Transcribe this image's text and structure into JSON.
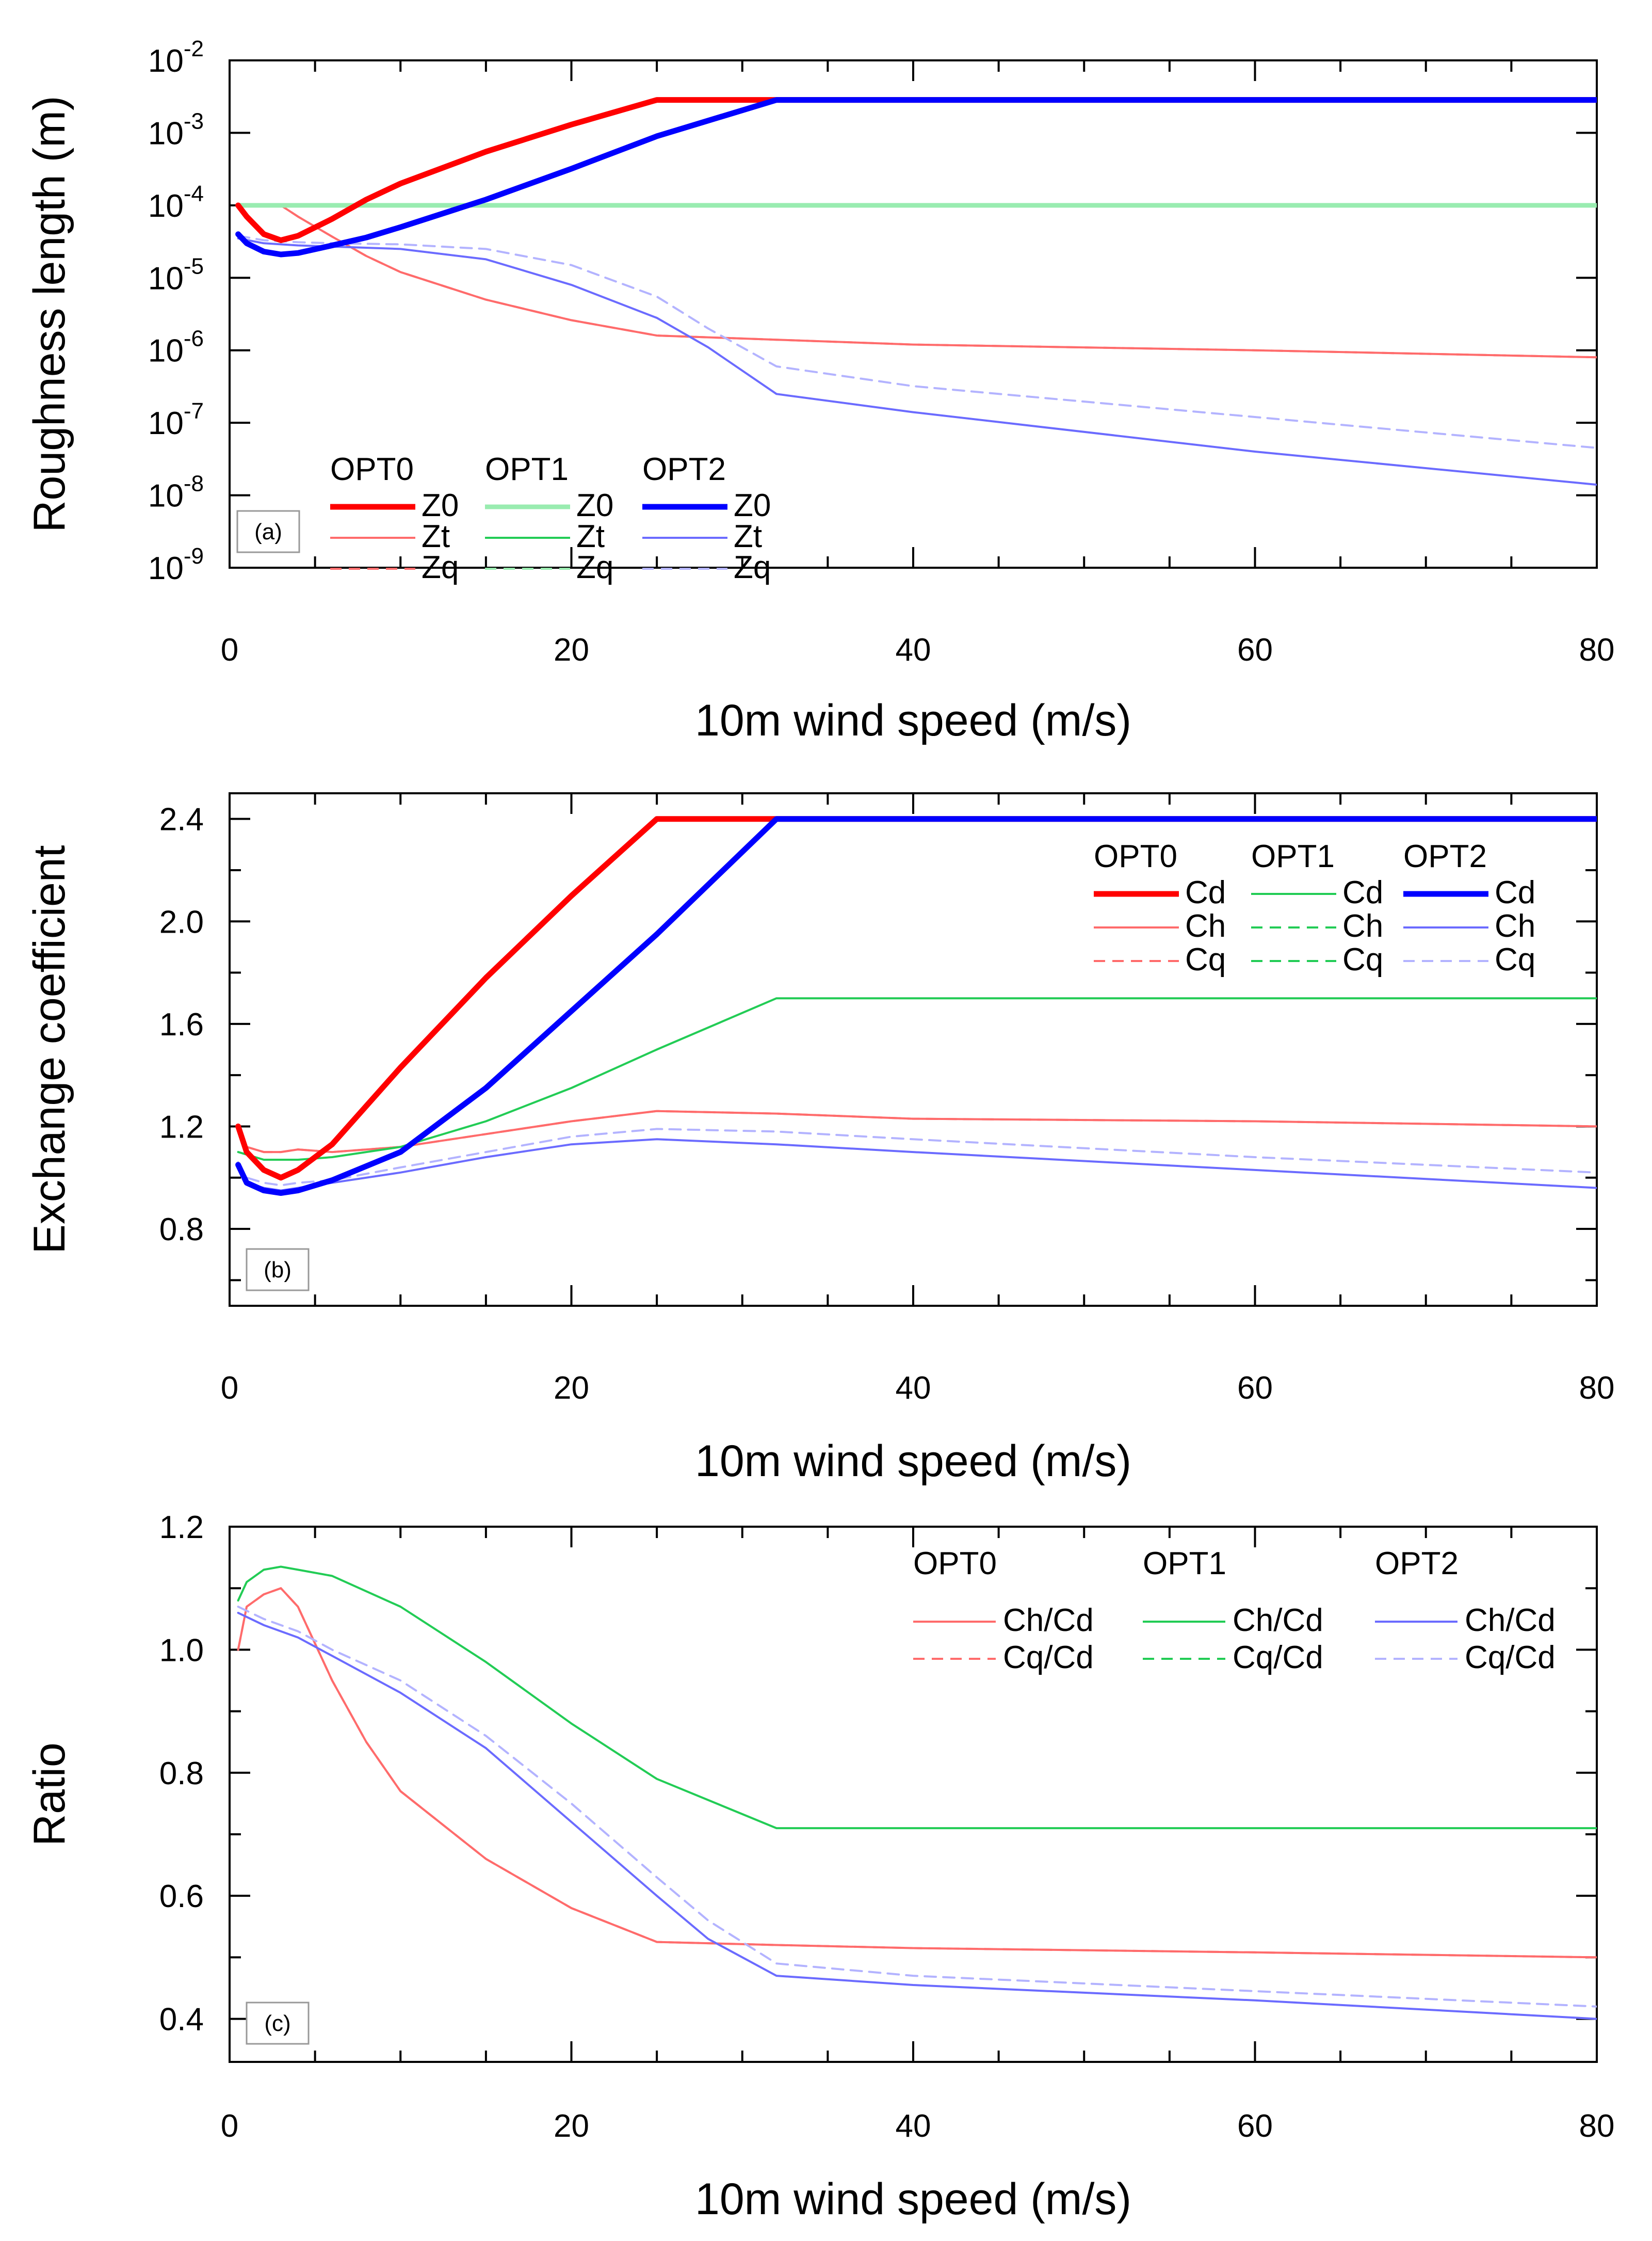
{
  "colors": {
    "opt0": "#ff0000",
    "opt0_light": "#ff6b6b",
    "opt1": "#22cc55",
    "opt1_light": "#99ecb0",
    "opt2": "#0000ff",
    "opt2_light": "#6b6bff",
    "opt2_lighter": "#b3b3ff"
  },
  "chart_data": [
    {
      "id": "a",
      "type": "line",
      "panel_label": "(a)",
      "xlabel": "10m wind speed (m/s)",
      "ylabel": "Roughness length (m)",
      "xlim": [
        0,
        80
      ],
      "yscale": "log",
      "ylim_exp": [
        -9,
        -2
      ],
      "xticks": [
        0,
        20,
        40,
        60,
        80
      ],
      "yticks": [
        -9,
        -8,
        -7,
        -6,
        -5,
        -4,
        -3,
        -2
      ],
      "ytick_labels": [
        {
          "base": "10",
          "exp": "-9"
        },
        {
          "base": "10",
          "exp": "-8"
        },
        {
          "base": "10",
          "exp": "-7"
        },
        {
          "base": "10",
          "exp": "-6"
        },
        {
          "base": "10",
          "exp": "-5"
        },
        {
          "base": "10",
          "exp": "-4"
        },
        {
          "base": "10",
          "exp": "-3"
        },
        {
          "base": "10",
          "exp": "-2"
        }
      ],
      "grid": false,
      "legend": {
        "position": "bottom-left",
        "groups": [
          "OPT0",
          "OPT1",
          "OPT2"
        ],
        "items": [
          "Z0",
          "Zt",
          "Zq"
        ]
      },
      "series": [
        {
          "name": "OPT0 Z0",
          "color_key": "opt0",
          "width": 11,
          "dash": "",
          "x": [
            0.5,
            1,
            2,
            3,
            4,
            6,
            8,
            10,
            15,
            20,
            25,
            80
          ],
          "y": [
            0.0001,
            7e-05,
            4e-05,
            3.3e-05,
            3.8e-05,
            6.5e-05,
            0.00012,
            0.0002,
            0.00055,
            0.0013,
            0.00285,
            0.00285
          ]
        },
        {
          "name": "OPT0 Zt",
          "color_key": "opt0_light",
          "width": 4,
          "dash": "",
          "x": [
            0.5,
            1,
            2,
            3,
            4,
            6,
            8,
            10,
            15,
            20,
            25,
            32,
            40,
            60,
            80
          ],
          "y": [
            0.0001,
            0.0001,
            0.0001,
            0.0001,
            7e-05,
            3.7e-05,
            2e-05,
            1.2e-05,
            5e-06,
            2.6e-06,
            1.6e-06,
            1.4e-06,
            1.2e-06,
            1e-06,
            8e-07
          ]
        },
        {
          "name": "OPT0 Zq",
          "color_key": "opt0_light",
          "width": 4,
          "dash": "22,14",
          "x": [
            0.5,
            1,
            2,
            3,
            4,
            6,
            8,
            10,
            15,
            20,
            25,
            32,
            40,
            60,
            80
          ],
          "y": [
            0.0001,
            0.0001,
            0.0001,
            0.0001,
            7e-05,
            3.7e-05,
            2e-05,
            1.2e-05,
            5e-06,
            2.6e-06,
            1.6e-06,
            1.4e-06,
            1.2e-06,
            1e-06,
            8e-07
          ]
        },
        {
          "name": "OPT1 Z0",
          "color_key": "opt1_light",
          "width": 9,
          "dash": "",
          "x": [
            0.5,
            80
          ],
          "y": [
            0.0001,
            0.0001
          ]
        },
        {
          "name": "OPT1 Zt",
          "color_key": "opt1",
          "width": 4,
          "dash": "",
          "x": [
            0.5,
            80
          ],
          "y": [
            0.0001,
            0.0001
          ]
        },
        {
          "name": "OPT1 Zq",
          "color_key": "opt1_light",
          "width": 4,
          "dash": "22,14",
          "x": [
            0.5,
            80
          ],
          "y": [
            0.0001,
            0.0001
          ]
        },
        {
          "name": "OPT2 Z0",
          "color_key": "opt2",
          "width": 11,
          "dash": "",
          "x": [
            0.5,
            1,
            2,
            3,
            4,
            6,
            8,
            10,
            15,
            20,
            25,
            32,
            80
          ],
          "y": [
            4e-05,
            3e-05,
            2.3e-05,
            2.1e-05,
            2.2e-05,
            2.8e-05,
            3.6e-05,
            5e-05,
            0.00012,
            0.00032,
            0.0009,
            0.00285,
            0.00285
          ]
        },
        {
          "name": "OPT2 Zt",
          "color_key": "opt2_light",
          "width": 4,
          "dash": "",
          "x": [
            0.5,
            2,
            4,
            6,
            8,
            10,
            15,
            20,
            25,
            28,
            32,
            40,
            60,
            80
          ],
          "y": [
            3.5e-05,
            3e-05,
            2.8e-05,
            2.7e-05,
            2.6e-05,
            2.5e-05,
            1.8e-05,
            8e-06,
            2.8e-06,
            1.1e-06,
            2.5e-07,
            1.4e-07,
            4e-08,
            1.4e-08
          ]
        },
        {
          "name": "OPT2 Zq",
          "color_key": "opt2_lighter",
          "width": 4,
          "dash": "22,14",
          "x": [
            0.5,
            2,
            4,
            6,
            10,
            15,
            20,
            25,
            28,
            32,
            40,
            60,
            80
          ],
          "y": [
            3.8e-05,
            3.3e-05,
            3.1e-05,
            3e-05,
            2.9e-05,
            2.5e-05,
            1.5e-05,
            5.5e-06,
            2e-06,
            6e-07,
            3.2e-07,
            1.2e-07,
            4.5e-08
          ]
        }
      ]
    },
    {
      "id": "b",
      "type": "line",
      "panel_label": "(b)",
      "xlabel": "10m wind speed (m/s)",
      "ylabel": "Exchange coefficient",
      "xlim": [
        0,
        80
      ],
      "ylim": [
        0.5,
        2.5
      ],
      "xticks": [
        0,
        20,
        40,
        60,
        80
      ],
      "yticks": [
        0.8,
        1.2,
        1.6,
        2.0,
        2.4
      ],
      "ytick_labels": [
        "0.8",
        "1.2",
        "1.6",
        "2.0",
        "2.4"
      ],
      "grid": false,
      "legend": {
        "position": "top-right",
        "groups": [
          "OPT0",
          "OPT1",
          "OPT2"
        ],
        "items": [
          "Cd",
          "Ch",
          "Cq"
        ]
      },
      "series": [
        {
          "name": "OPT0 Cd",
          "color_key": "opt0",
          "width": 11,
          "dash": "",
          "x": [
            0.5,
            1,
            2,
            3,
            4,
            6,
            10,
            15,
            20,
            25,
            80
          ],
          "y": [
            1.2,
            1.1,
            1.03,
            1.0,
            1.03,
            1.13,
            1.43,
            1.78,
            2.1,
            2.4,
            2.4
          ]
        },
        {
          "name": "OPT0 Ch",
          "color_key": "opt0_light",
          "width": 4,
          "dash": "",
          "x": [
            0.5,
            1,
            2,
            3,
            4,
            6,
            10,
            15,
            20,
            25,
            32,
            40,
            60,
            80
          ],
          "y": [
            1.2,
            1.12,
            1.1,
            1.1,
            1.11,
            1.1,
            1.12,
            1.17,
            1.22,
            1.26,
            1.25,
            1.23,
            1.22,
            1.2
          ]
        },
        {
          "name": "OPT0 Cq",
          "color_key": "opt0_light",
          "width": 4,
          "dash": "22,14",
          "x": [
            0.5,
            1,
            2,
            3,
            4,
            6,
            10,
            15,
            20,
            25,
            32,
            40,
            60,
            80
          ],
          "y": [
            1.2,
            1.12,
            1.1,
            1.1,
            1.11,
            1.1,
            1.12,
            1.17,
            1.22,
            1.26,
            1.25,
            1.23,
            1.22,
            1.2
          ]
        },
        {
          "name": "OPT1 Cd",
          "color_key": "opt1",
          "width": 4,
          "dash": "",
          "x": [
            0.5,
            2,
            4,
            6,
            10,
            15,
            20,
            25,
            32,
            80
          ],
          "y": [
            1.1,
            1.07,
            1.07,
            1.08,
            1.12,
            1.22,
            1.35,
            1.5,
            1.7,
            1.7
          ]
        },
        {
          "name": "OPT2 Cd",
          "color_key": "opt2",
          "width": 11,
          "dash": "",
          "x": [
            0.5,
            1,
            2,
            3,
            4,
            6,
            10,
            15,
            20,
            25,
            32,
            80
          ],
          "y": [
            1.05,
            0.98,
            0.95,
            0.94,
            0.95,
            0.99,
            1.1,
            1.35,
            1.65,
            1.95,
            2.4,
            2.4
          ]
        },
        {
          "name": "OPT2 Ch",
          "color_key": "opt2_light",
          "width": 4,
          "dash": "",
          "x": [
            0.5,
            1,
            2,
            3,
            4,
            6,
            10,
            15,
            20,
            25,
            32,
            40,
            60,
            80
          ],
          "y": [
            1.04,
            0.98,
            0.96,
            0.95,
            0.96,
            0.98,
            1.02,
            1.08,
            1.13,
            1.15,
            1.13,
            1.1,
            1.03,
            0.96
          ]
        },
        {
          "name": "OPT2 Cq",
          "color_key": "opt2_lighter",
          "width": 4,
          "dash": "22,14",
          "x": [
            0.5,
            1,
            2,
            3,
            4,
            6,
            10,
            15,
            20,
            25,
            32,
            40,
            60,
            80
          ],
          "y": [
            1.06,
            1.0,
            0.98,
            0.97,
            0.98,
            0.99,
            1.04,
            1.1,
            1.16,
            1.19,
            1.18,
            1.15,
            1.08,
            1.02
          ]
        }
      ]
    },
    {
      "id": "c",
      "type": "line",
      "panel_label": "(c)",
      "xlabel": "10m wind speed (m/s)",
      "ylabel": "Ratio",
      "xlim": [
        0,
        80
      ],
      "ylim": [
        0.33,
        1.2
      ],
      "xticks": [
        0,
        20,
        40,
        60,
        80
      ],
      "yticks": [
        0.4,
        0.6,
        0.8,
        1.0,
        1.2
      ],
      "ytick_labels": [
        "0.4",
        "0.6",
        "0.8",
        "1.0",
        "1.2"
      ],
      "grid": false,
      "legend": {
        "position": "top-right",
        "groups": [
          "OPT0",
          "OPT1",
          "OPT2"
        ],
        "items": [
          "Ch/Cd",
          "Cq/Cd"
        ]
      },
      "series": [
        {
          "name": "OPT0 Ch/Cd",
          "color_key": "opt0_light",
          "width": 4,
          "dash": "",
          "x": [
            0.5,
            1,
            2,
            3,
            4,
            6,
            8,
            10,
            15,
            20,
            25,
            32,
            40,
            60,
            80
          ],
          "y": [
            1.0,
            1.07,
            1.09,
            1.1,
            1.07,
            0.95,
            0.85,
            0.77,
            0.66,
            0.58,
            0.525,
            0.52,
            0.515,
            0.508,
            0.5
          ]
        },
        {
          "name": "OPT0 Cq/Cd",
          "color_key": "opt0_light",
          "width": 4,
          "dash": "22,14",
          "x": [
            0.5,
            1,
            2,
            3,
            4,
            6,
            8,
            10,
            15,
            20,
            25,
            32,
            40,
            60,
            80
          ],
          "y": [
            1.0,
            1.07,
            1.09,
            1.1,
            1.07,
            0.95,
            0.85,
            0.77,
            0.66,
            0.58,
            0.525,
            0.52,
            0.515,
            0.508,
            0.5
          ]
        },
        {
          "name": "OPT1 Ch/Cd",
          "color_key": "opt1",
          "width": 4,
          "dash": "",
          "x": [
            0.5,
            1,
            2,
            3,
            4,
            6,
            10,
            15,
            20,
            25,
            32,
            80
          ],
          "y": [
            1.08,
            1.11,
            1.13,
            1.135,
            1.13,
            1.12,
            1.07,
            0.98,
            0.88,
            0.79,
            0.71,
            0.71
          ]
        },
        {
          "name": "OPT2 Ch/Cd",
          "color_key": "opt2_light",
          "width": 4,
          "dash": "",
          "x": [
            0.5,
            2,
            4,
            6,
            10,
            15,
            20,
            25,
            28,
            32,
            40,
            60,
            80
          ],
          "y": [
            1.06,
            1.04,
            1.02,
            0.99,
            0.93,
            0.84,
            0.72,
            0.6,
            0.53,
            0.47,
            0.455,
            0.43,
            0.4
          ]
        },
        {
          "name": "OPT2 Cq/Cd",
          "color_key": "opt2_lighter",
          "width": 4,
          "dash": "22,14",
          "x": [
            0.5,
            2,
            4,
            6,
            10,
            15,
            20,
            25,
            28,
            32,
            40,
            60,
            80
          ],
          "y": [
            1.07,
            1.05,
            1.03,
            1.0,
            0.95,
            0.86,
            0.75,
            0.63,
            0.56,
            0.49,
            0.47,
            0.445,
            0.42
          ]
        }
      ]
    }
  ]
}
